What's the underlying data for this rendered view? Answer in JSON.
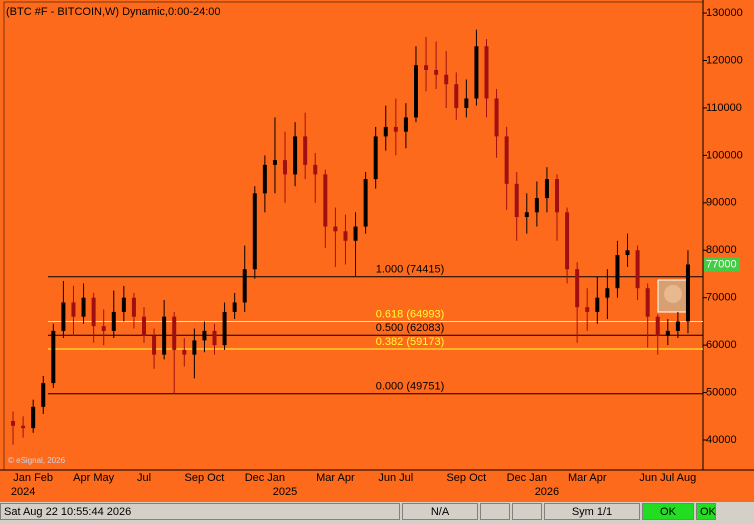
{
  "chart_data": {
    "type": "candlestick",
    "title": "(BTC #F - BITCOIN,W) Dynamic,0:00-24:00",
    "watermark": "© eSignal, 2026",
    "up_color": "#000000",
    "down_color": "#a01010",
    "background": "#fd6a1c",
    "categories": [
      null,
      null,
      "Jan Feb",
      null,
      null,
      null,
      null,
      null,
      "Apr May",
      null,
      null,
      null,
      null,
      "Jul",
      null,
      null,
      null,
      null,
      null,
      "Sep Oct",
      null,
      null,
      null,
      null,
      null,
      "Dec Jan",
      null,
      null,
      null,
      null,
      null,
      null,
      "Mar Apr",
      null,
      null,
      null,
      null,
      null,
      "Jun Jul",
      null,
      null,
      null,
      null,
      null,
      null,
      "Sep Oct",
      null,
      null,
      null,
      null,
      null,
      "Dec Jan",
      null,
      null,
      null,
      null,
      null,
      "Mar Apr",
      null,
      null,
      null,
      null,
      null,
      null,
      null,
      "Jun Jul Aug",
      null,
      null
    ],
    "year_categories": [
      null,
      "2024",
      null,
      null,
      null,
      null,
      null,
      null,
      null,
      null,
      null,
      null,
      null,
      null,
      null,
      null,
      null,
      null,
      null,
      null,
      null,
      null,
      null,
      null,
      null,
      null,
      null,
      "2025",
      null,
      null,
      null,
      null,
      null,
      null,
      null,
      null,
      null,
      null,
      null,
      null,
      null,
      null,
      null,
      null,
      null,
      null,
      null,
      null,
      null,
      null,
      null,
      null,
      null,
      "2026",
      null,
      null,
      null,
      null,
      null,
      null,
      null,
      null,
      null,
      null,
      null,
      null,
      null,
      null
    ],
    "open": [
      44000,
      43000,
      42500,
      47000,
      52000,
      63000,
      69000,
      66000,
      70000,
      64000,
      63000,
      67000,
      70000,
      66000,
      62000,
      58000,
      66000,
      59000,
      58000,
      61000,
      63000,
      60000,
      67000,
      69000,
      76000,
      92000,
      98000,
      99000,
      96000,
      104000,
      98000,
      96000,
      85000,
      84000,
      82000,
      85000,
      95000,
      104000,
      106000,
      105000,
      108000,
      119000,
      118000,
      117000,
      115000,
      110000,
      112000,
      123000,
      112000,
      104000,
      94000,
      87000,
      88000,
      91000,
      95000,
      88000,
      76000,
      68000,
      67000,
      70000,
      72000,
      79000,
      80000,
      72000,
      66000,
      62000,
      63000,
      65000
    ],
    "high": [
      46000,
      45000,
      48500,
      53500,
      64500,
      73500,
      72500,
      73000,
      71000,
      67500,
      71500,
      72500,
      71000,
      68000,
      63500,
      69500,
      67000,
      61500,
      63500,
      65000,
      64500,
      69000,
      71000,
      81000,
      93500,
      100000,
      108000,
      105000,
      107000,
      109000,
      100500,
      97000,
      89000,
      87500,
      88000,
      96500,
      106000,
      110500,
      112000,
      111000,
      123000,
      125000,
      124000,
      122000,
      117500,
      116000,
      126500,
      124500,
      114000,
      106000,
      96500,
      92000,
      94500,
      97500,
      96000,
      89000,
      77500,
      72000,
      74500,
      76000,
      82000,
      83500,
      81000,
      73000,
      66500,
      65500,
      67000,
      80000
    ],
    "low": [
      39000,
      40500,
      41500,
      45500,
      51000,
      61500,
      62000,
      64500,
      60500,
      60000,
      61500,
      65000,
      63500,
      60500,
      55000,
      57000,
      49751,
      55500,
      53000,
      58500,
      58000,
      59000,
      65500,
      67000,
      74000,
      88000,
      92000,
      90000,
      93500,
      95000,
      90000,
      80500,
      76500,
      77000,
      74600,
      83500,
      93000,
      101000,
      100000,
      101500,
      107000,
      113500,
      114000,
      110000,
      107500,
      108000,
      110500,
      108000,
      99500,
      88500,
      82000,
      83500,
      85000,
      88000,
      82000,
      73000,
      60500,
      63000,
      64500,
      65500,
      70000,
      76500,
      69500,
      59500,
      58000,
      60000,
      61500,
      62500
    ],
    "close": [
      43000,
      42500,
      47000,
      52000,
      63000,
      69000,
      66000,
      70000,
      64000,
      63000,
      67000,
      70000,
      66000,
      62000,
      58000,
      66000,
      59000,
      58000,
      61000,
      63000,
      60000,
      67000,
      69000,
      76000,
      92000,
      98000,
      99000,
      96000,
      104000,
      98000,
      96000,
      85000,
      84000,
      82000,
      85000,
      95000,
      104000,
      106000,
      105000,
      108000,
      119000,
      118000,
      117000,
      115000,
      110000,
      112000,
      123000,
      112000,
      104000,
      94000,
      87000,
      88000,
      91000,
      95000,
      88000,
      76000,
      68000,
      67000,
      70000,
      72000,
      79000,
      80000,
      72000,
      66000,
      62000,
      63000,
      65000,
      77000
    ],
    "last_price": 77000,
    "fib_levels": [
      {
        "value": 74415,
        "label": "1.000 (74415)",
        "color": "#000000"
      },
      {
        "value": 64993,
        "label": "0.618 (64993)",
        "color": "#ffff33"
      },
      {
        "value": 62083,
        "label": "0.500 (62083)",
        "color": "#000000"
      },
      {
        "value": 59173,
        "label": "0.382 (59173)",
        "color": "#ffff33"
      },
      {
        "value": 49751,
        "label": "0.000 (49751)",
        "color": "#000000"
      }
    ],
    "ylim": [
      34100,
      131700
    ],
    "yticks": [
      40000,
      50000,
      60000,
      70000,
      80000,
      90000,
      100000,
      110000,
      120000,
      130000
    ]
  },
  "status_bar": {
    "datetime": "Sat Aug 22 10:55:44 2026",
    "feed": "N/A",
    "symbol": "Sym 1/1",
    "ok1": "OK",
    "ok2": "OK"
  }
}
